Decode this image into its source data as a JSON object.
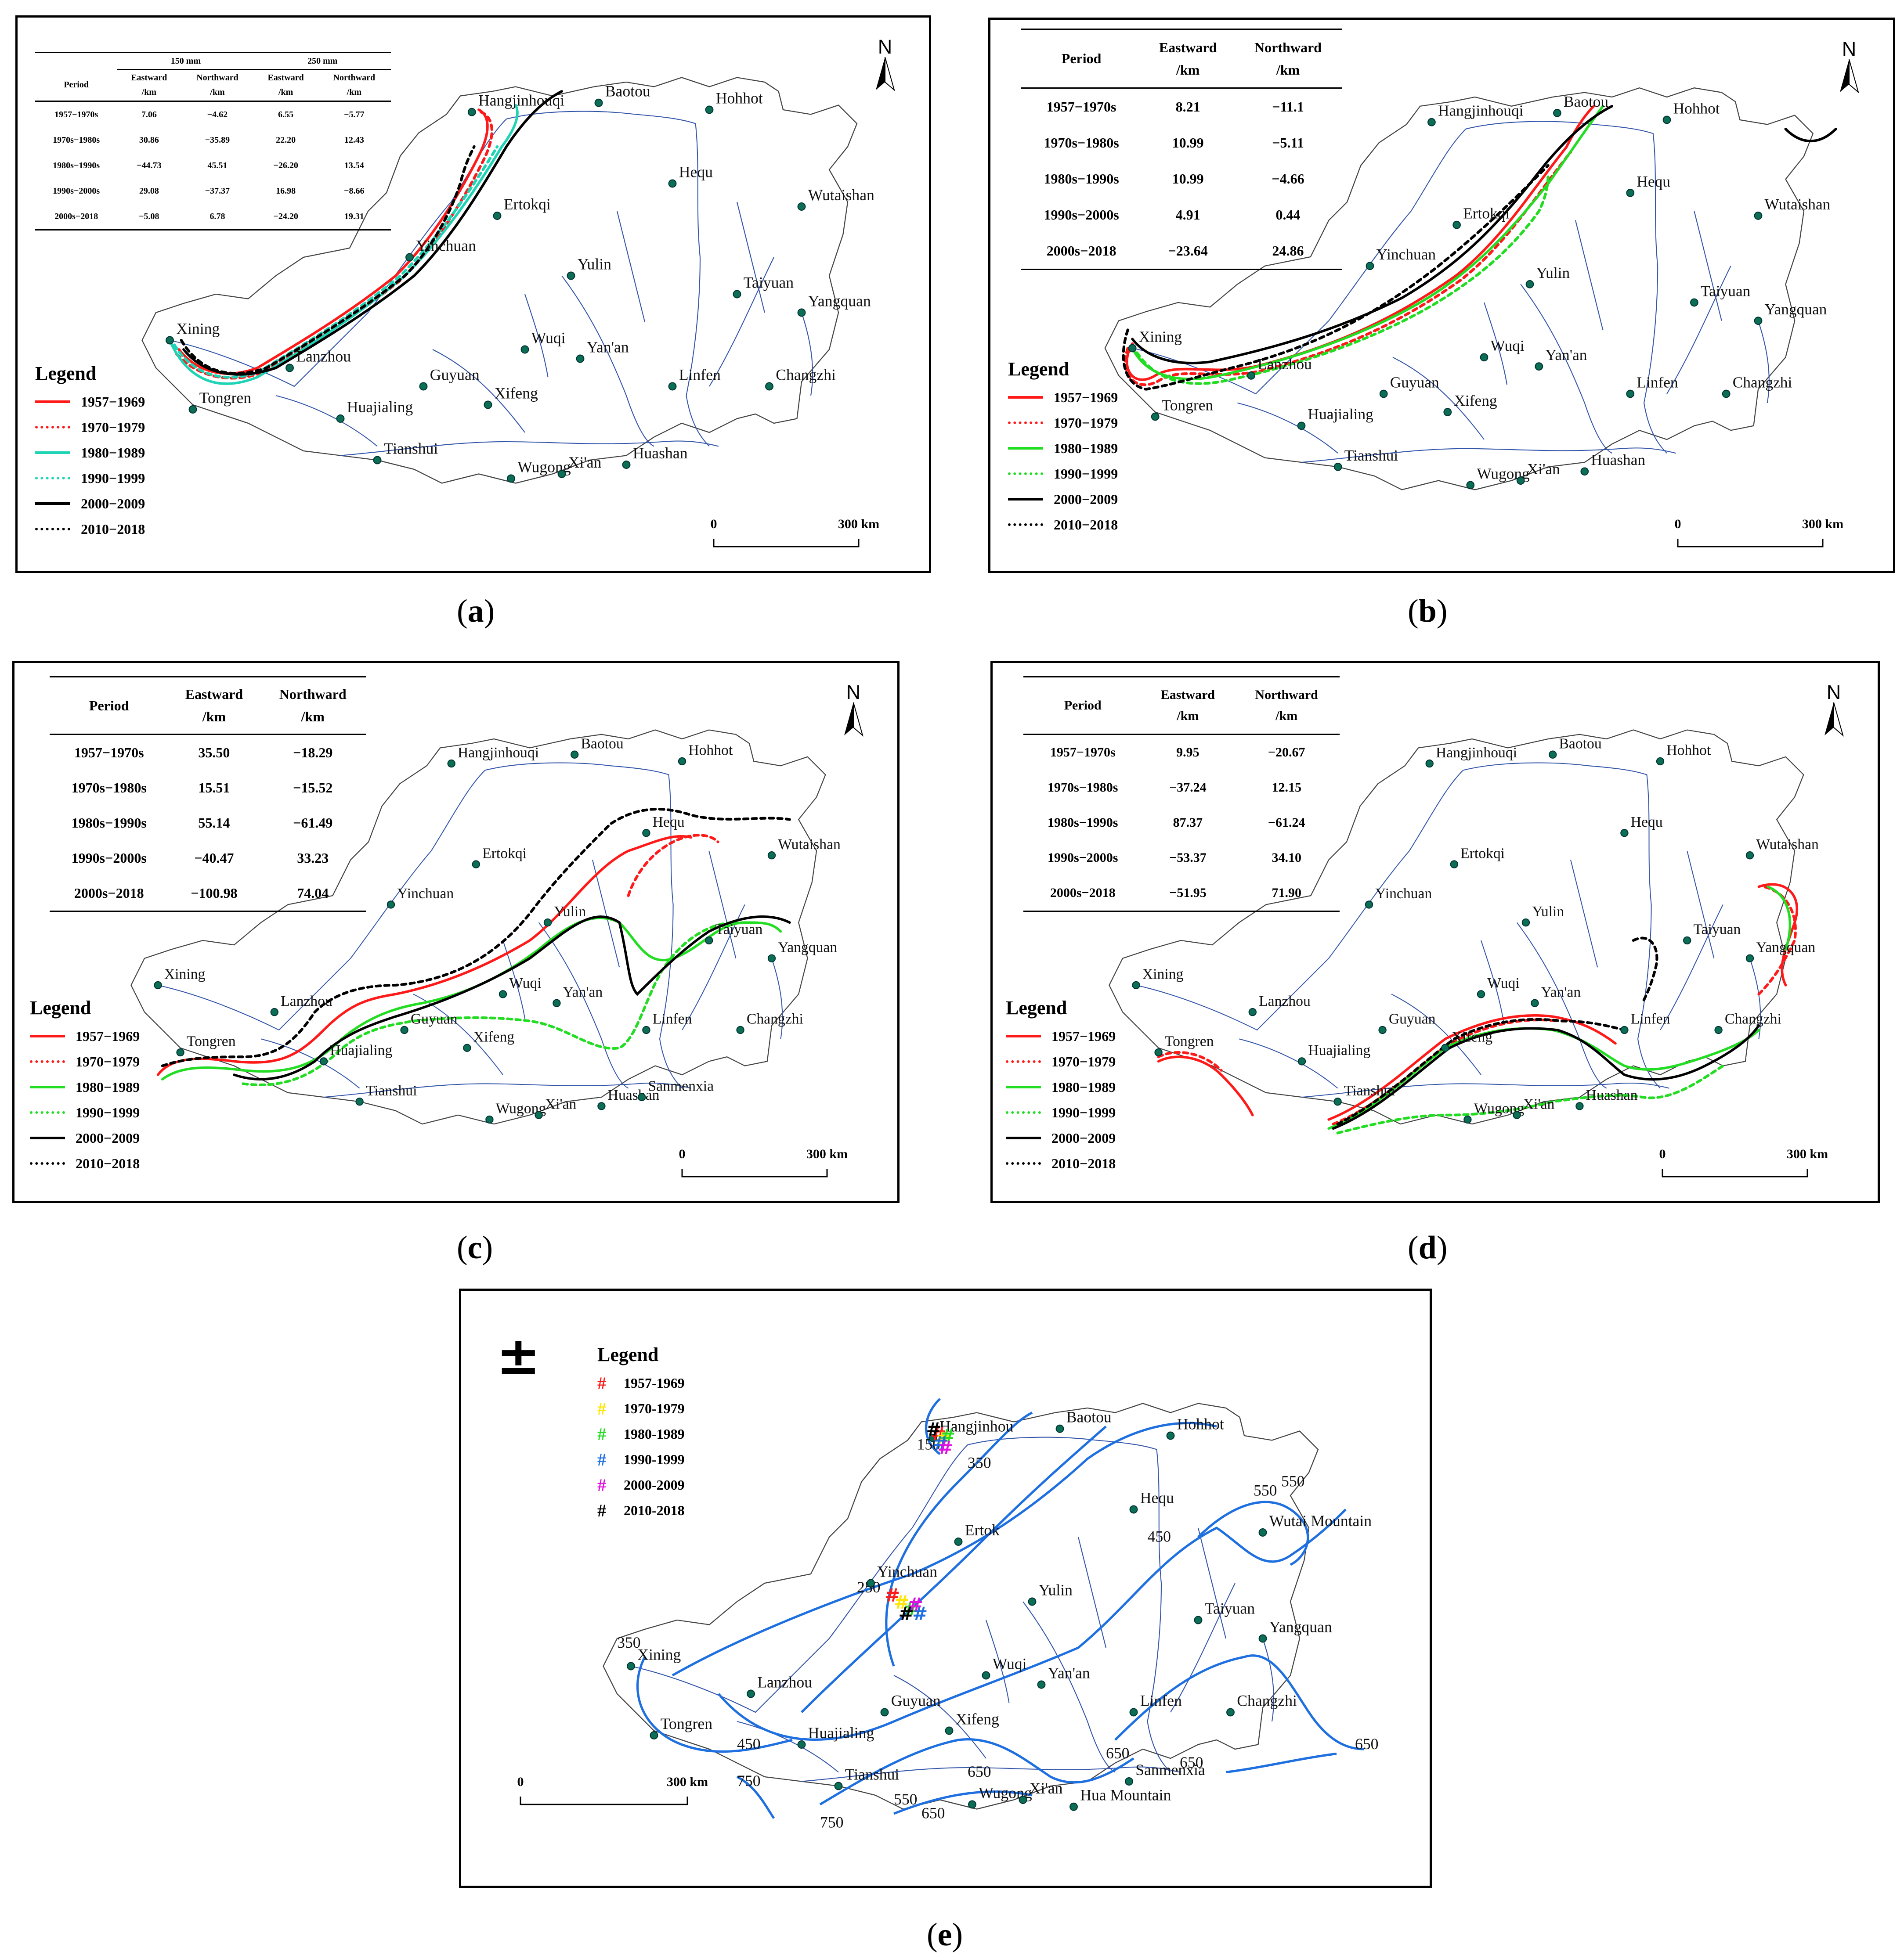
{
  "colors": {
    "red": "#ff1a1a",
    "green": "#22dd22",
    "cyan": "#1fd3b5",
    "black": "#000000",
    "river": "#3355aa",
    "contour": "#1e6fe0",
    "city": "#0b6e55"
  },
  "panels": [
    {
      "id": "a",
      "label": "a",
      "table": {
        "group_headers": [
          "150 mm",
          "250 mm"
        ],
        "headers": [
          "Period",
          "Eastward",
          "/km",
          "Northward",
          "/km",
          "Eastward",
          "/km",
          "Northward",
          "/km"
        ],
        "rows": [
          [
            "1957−1970s",
            "7.06",
            "−4.62",
            "6.55",
            "−5.77"
          ],
          [
            "1970s−1980s",
            "30.86",
            "−35.89",
            "22.20",
            "12.43"
          ],
          [
            "1980s−1990s",
            "−44.73",
            "45.51",
            "−26.20",
            "13.54"
          ],
          [
            "1990s−2000s",
            "29.08",
            "−37.37",
            "16.98",
            "−8.66"
          ],
          [
            "2000s−2018",
            "−5.08",
            "6.78",
            "−24.20",
            "19.31"
          ]
        ]
      },
      "legend": {
        "title": "Legend",
        "items": [
          {
            "label": "1957−1969",
            "color": "#ff1a1a",
            "style": "solid"
          },
          {
            "label": "1970−1979",
            "color": "#ff1a1a",
            "style": "dotted"
          },
          {
            "label": "1980−1989",
            "color": "#1fd3b5",
            "style": "solid"
          },
          {
            "label": "1990−1999",
            "color": "#1fd3b5",
            "style": "dotted"
          },
          {
            "label": "2000−2009",
            "color": "#000000",
            "style": "solid"
          },
          {
            "label": "2010−2018",
            "color": "#000000",
            "style": "dotted"
          }
        ]
      },
      "north": "N",
      "scale": {
        "start": "0",
        "end": "300 km"
      },
      "cities": [
        "Hangjinhouqi",
        "Baotou",
        "Hohhot",
        "Hequ",
        "Wutaishan",
        "Ertokqi",
        "Yinchuan",
        "Yulin",
        "Taiyuan",
        "Yangquan",
        "Xining",
        "Wuqi",
        "Yan'an",
        "Lanzhou",
        "Guyuan",
        "Xifeng",
        "Linfen",
        "Changzhi",
        "Tongren",
        "Huajialing",
        "Tianshui",
        "Wugong",
        "Xi'an",
        "Huashan"
      ]
    },
    {
      "id": "b",
      "label": "b",
      "table": {
        "headers": [
          "Period",
          "Eastward",
          "/km",
          "Northward",
          "/km"
        ],
        "rows": [
          [
            "1957−1970s",
            "8.21",
            "−11.1"
          ],
          [
            "1970s−1980s",
            "10.99",
            "−5.11"
          ],
          [
            "1980s−1990s",
            "10.99",
            "−4.66"
          ],
          [
            "1990s−2000s",
            "4.91",
            "0.44"
          ],
          [
            "2000s−2018",
            "−23.64",
            "24.86"
          ]
        ]
      },
      "legend": {
        "title": "Legend",
        "items": [
          {
            "label": "1957−1969",
            "color": "#ff1a1a",
            "style": "solid"
          },
          {
            "label": "1970−1979",
            "color": "#ff1a1a",
            "style": "dotted"
          },
          {
            "label": "1980−1989",
            "color": "#22dd22",
            "style": "solid"
          },
          {
            "label": "1990−1999",
            "color": "#22dd22",
            "style": "dotted"
          },
          {
            "label": "2000−2009",
            "color": "#000000",
            "style": "solid"
          },
          {
            "label": "2010−2018",
            "color": "#000000",
            "style": "dotted"
          }
        ]
      },
      "north": "N",
      "scale": {
        "start": "0",
        "end": "300 km"
      },
      "cities": [
        "Hangjinhouqi",
        "Baotou",
        "Hohhot",
        "Hequ",
        "Wutaishan",
        "Ertokqi",
        "Yinchuan",
        "Yulin",
        "Taiyuan",
        "Yangquan",
        "Xining",
        "Wuqi",
        "Yan'an",
        "Lanzhou",
        "Guyuan",
        "Xifeng",
        "Linfen",
        "Changzhi",
        "Tongren",
        "Huajialing",
        "Tianshui",
        "Wugong",
        "Xi'an",
        "Huashan"
      ]
    },
    {
      "id": "c",
      "label": "c",
      "table": {
        "headers": [
          "Period",
          "Eastward",
          "/km",
          "Northward",
          "/km"
        ],
        "rows": [
          [
            "1957−1970s",
            "35.50",
            "−18.29"
          ],
          [
            "1970s−1980s",
            "15.51",
            "−15.52"
          ],
          [
            "1980s−1990s",
            "55.14",
            "−61.49"
          ],
          [
            "1990s−2000s",
            "−40.47",
            "33.23"
          ],
          [
            "2000s−2018",
            "−100.98",
            "74.04"
          ]
        ]
      },
      "legend": {
        "title": "Legend",
        "items": [
          {
            "label": "1957−1969",
            "color": "#ff1a1a",
            "style": "solid"
          },
          {
            "label": "1970−1979",
            "color": "#ff1a1a",
            "style": "dotted"
          },
          {
            "label": "1980−1989",
            "color": "#22dd22",
            "style": "solid"
          },
          {
            "label": "1990−1999",
            "color": "#22dd22",
            "style": "dotted"
          },
          {
            "label": "2000−2009",
            "color": "#000000",
            "style": "solid"
          },
          {
            "label": "2010−2018",
            "color": "#000000",
            "style": "dotted"
          }
        ]
      },
      "north": "N",
      "scale": {
        "start": "0",
        "end": "300 km"
      },
      "cities": [
        "Hangjinhouqi",
        "Baotou",
        "Hohhot",
        "Hequ",
        "Wutaishan",
        "Ertokqi",
        "Yinchuan",
        "Yulin",
        "Taiyuan",
        "Yangquan",
        "Xining",
        "Wuqi",
        "Yan'an",
        "Lanzhou",
        "Guyuan",
        "Xifeng",
        "Linfen",
        "Changzhi",
        "Tongren",
        "Huajialing",
        "Tianshui",
        "Wugong",
        "Xi'an",
        "Huashan",
        "Sanmenxia"
      ]
    },
    {
      "id": "d",
      "label": "d",
      "table": {
        "headers": [
          "Period",
          "Eastward",
          "/km",
          "Northward",
          "/km"
        ],
        "rows": [
          [
            "1957−1970s",
            "9.95",
            "−20.67"
          ],
          [
            "1970s−1980s",
            "−37.24",
            "12.15"
          ],
          [
            "1980s−1990s",
            "87.37",
            "−61.24"
          ],
          [
            "1990s−2000s",
            "−53.37",
            "34.10"
          ],
          [
            "2000s−2018",
            "−51.95",
            "71.90"
          ]
        ]
      },
      "legend": {
        "title": "Legend",
        "items": [
          {
            "label": "1957−1969",
            "color": "#ff1a1a",
            "style": "solid"
          },
          {
            "label": "1970−1979",
            "color": "#ff1a1a",
            "style": "dotted"
          },
          {
            "label": "1980−1989",
            "color": "#22dd22",
            "style": "solid"
          },
          {
            "label": "1990−1999",
            "color": "#22dd22",
            "style": "dotted"
          },
          {
            "label": "2000−2009",
            "color": "#000000",
            "style": "solid"
          },
          {
            "label": "2010−2018",
            "color": "#000000",
            "style": "dotted"
          }
        ]
      },
      "north": "N",
      "scale": {
        "start": "0",
        "end": "300 km"
      },
      "cities": [
        "Hangjinhouqi",
        "Baotou",
        "Hohhot",
        "Hequ",
        "Wutaishan",
        "Ertokqi",
        "Yinchuan",
        "Yulin",
        "Taiyuan",
        "Yangquan",
        "Xining",
        "Wuqi",
        "Yan'an",
        "Lanzhou",
        "Guyuan",
        "Xifeng",
        "Linfen",
        "Changzhi",
        "Tongren",
        "Huajialing",
        "Tianshui",
        "Wugong",
        "Xi'an",
        "Huashan"
      ]
    },
    {
      "id": "e",
      "label": "e",
      "legend": {
        "title": "Legend",
        "items": [
          {
            "label": "1957-1969",
            "color": "#ff1a1a",
            "symbol": "#"
          },
          {
            "label": "1970-1979",
            "color": "#ffe600",
            "symbol": "#"
          },
          {
            "label": "1980-1989",
            "color": "#22dd22",
            "symbol": "#"
          },
          {
            "label": "1990-1999",
            "color": "#1e6fe0",
            "symbol": "#"
          },
          {
            "label": "2000-2009",
            "color": "#e010e0",
            "symbol": "#"
          },
          {
            "label": "2010-2018",
            "color": "#000000",
            "symbol": "#"
          }
        ]
      },
      "north": "±",
      "scale": {
        "start": "0",
        "end": "300 km"
      },
      "contour_labels": [
        "150",
        "250",
        "350",
        "350",
        "450",
        "450",
        "550",
        "550",
        "650",
        "650",
        "650",
        "650",
        "750",
        "750",
        "550",
        "650"
      ],
      "cities": [
        "Hangjinhou",
        "Baotou",
        "Hohhot",
        "Hequ",
        "Wutai Mountain",
        "Ertok",
        "Yinchuan",
        "Yulin",
        "Taiyuan",
        "Yangquan",
        "Xining",
        "Wuqi",
        "Yan'an",
        "Lanzhou",
        "Guyuan",
        "Xifeng",
        "Linfen",
        "Changzhi",
        "Tongren",
        "Huajialing",
        "Sanmenxia",
        "Tianshui",
        "Wugong",
        "Xi'an",
        "Hua Mountain"
      ]
    }
  ]
}
